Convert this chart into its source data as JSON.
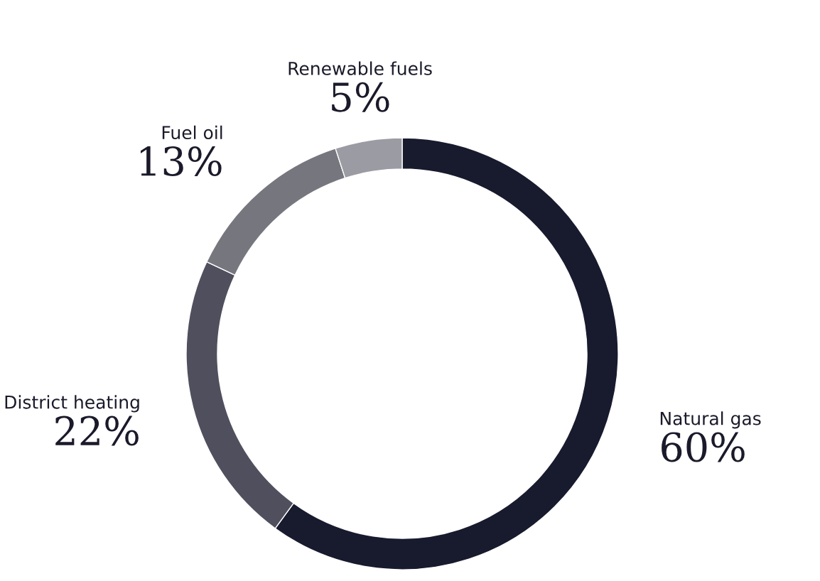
{
  "chart_data": {
    "type": "donut",
    "categories": [
      "Natural gas",
      "District heating",
      "Fuel oil",
      "Renewable fuels"
    ],
    "values": [
      60,
      22,
      13,
      5
    ],
    "colors": [
      "#181a2e",
      "#4f4f5e",
      "#76767f",
      "#9b9ba3"
    ],
    "value_labels": [
      "60%",
      "22%",
      "13%",
      "5%"
    ]
  }
}
